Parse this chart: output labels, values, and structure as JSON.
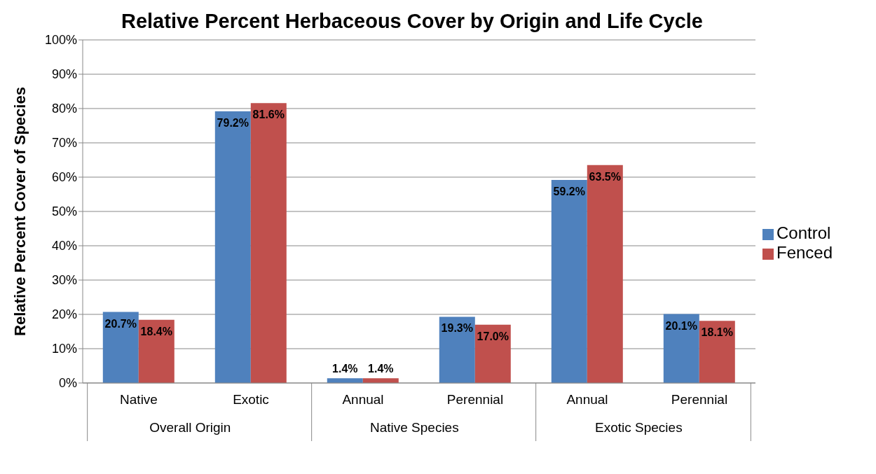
{
  "chart_data": {
    "type": "bar",
    "title": "Relative Percent Herbaceous Cover by Origin and Life Cycle",
    "ylabel": "Relative Percent Cover of Species",
    "categories": [
      "Native",
      "Exotic",
      "Annual",
      "Perennial",
      "Annual",
      "Perennial"
    ],
    "annotations": [
      "Overall Origin",
      "Native Species",
      "Exotic Species"
    ],
    "series": [
      {
        "name": "Control",
        "color": "#4f81bd",
        "values": [
          20.7,
          79.2,
          1.4,
          19.3,
          59.2,
          20.1
        ],
        "value_labels": [
          "20.7%",
          "79.2%",
          "1.4%",
          "19.3%",
          "59.2%",
          "20.1%"
        ]
      },
      {
        "name": "Fenced",
        "color": "#c0504d",
        "values": [
          18.4,
          81.6,
          1.4,
          17.0,
          63.5,
          18.1
        ],
        "value_labels": [
          "18.4%",
          "81.6%",
          "1.4%",
          "17.0%",
          "63.5%",
          "18.1%"
        ]
      }
    ],
    "ylim": [
      0,
      100
    ],
    "yticks": [
      {
        "value": 0,
        "label": "0%"
      },
      {
        "value": 10,
        "label": "10%"
      },
      {
        "value": 20,
        "label": "20%"
      },
      {
        "value": 30,
        "label": "30%"
      },
      {
        "value": 40,
        "label": "40%"
      },
      {
        "value": 50,
        "label": "50%"
      },
      {
        "value": 60,
        "label": "60%"
      },
      {
        "value": 70,
        "label": "70%"
      },
      {
        "value": 80,
        "label": "80%"
      },
      {
        "value": 90,
        "label": "90%"
      },
      {
        "value": 100,
        "label": "100%"
      }
    ],
    "grid": "y",
    "legend": "right"
  }
}
